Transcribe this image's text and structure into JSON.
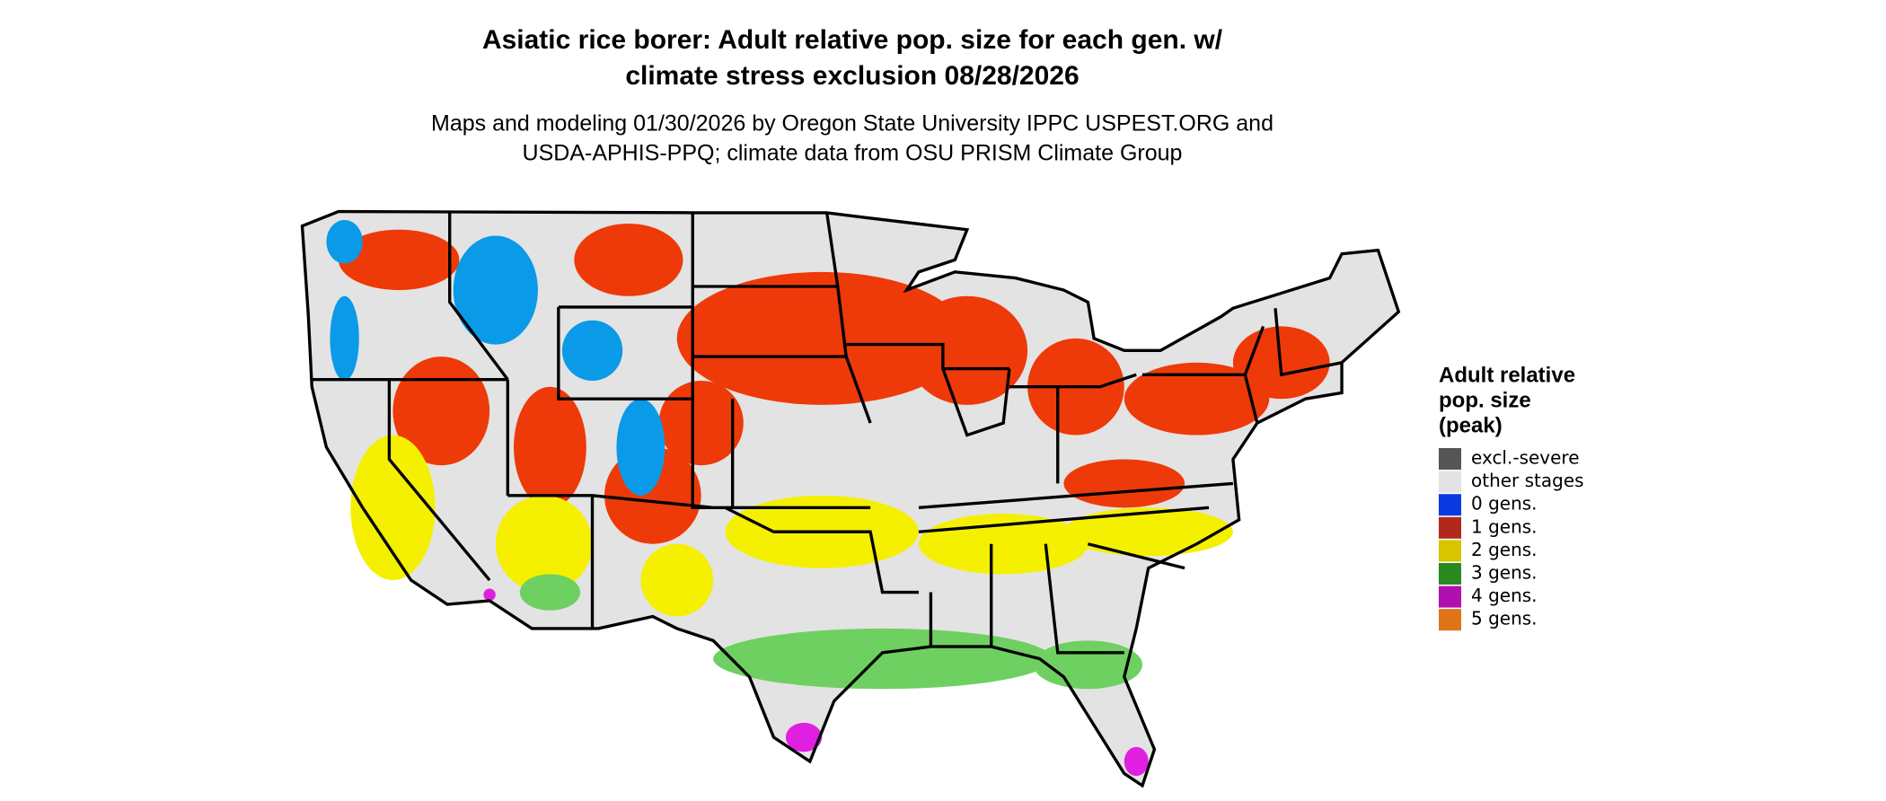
{
  "header": {
    "title": [
      "Asiatic rice borer: Adult relative pop. size for each gen. w/",
      "climate stress exclusion 08/28/2026"
    ],
    "subtitle": [
      "Maps and modeling 01/30/2026 by Oregon State University IPPC USPEST.ORG and",
      "USDA-APHIS-PPQ; climate data from OSU PRISM Climate Group"
    ]
  },
  "legend": {
    "title": [
      "Adult relative",
      "pop. size",
      "(peak)"
    ],
    "items": [
      {
        "label": "excl.-severe",
        "color": "#555555"
      },
      {
        "label": "other stages",
        "color": "#e3e3e3"
      },
      {
        "label": "0 gens.",
        "color": "#0a3ae0"
      },
      {
        "label": "1 gens.",
        "color": "#b3281c"
      },
      {
        "label": "2 gens.",
        "color": "#d8c400"
      },
      {
        "label": "3 gens.",
        "color": "#2a8a22"
      },
      {
        "label": "4 gens.",
        "color": "#b010b0"
      },
      {
        "label": "5 gens.",
        "color": "#e07418"
      }
    ]
  }
}
